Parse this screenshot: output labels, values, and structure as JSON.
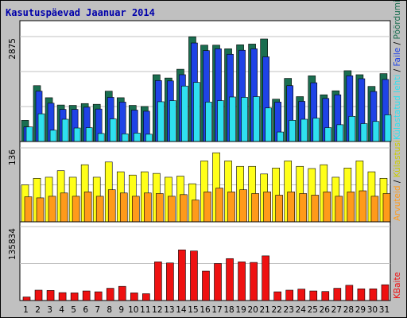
{
  "chart_data": [
    {
      "type": "bar",
      "title": "Kasutuspäevad Jaanuar 2014",
      "categories": [
        "1",
        "2",
        "3",
        "4",
        "5",
        "6",
        "7",
        "8",
        "9",
        "10",
        "11",
        "12",
        "13",
        "14",
        "15",
        "16",
        "17",
        "18",
        "19",
        "20",
        "21",
        "22",
        "23",
        "24",
        "25",
        "26",
        "27",
        "28",
        "29",
        "30",
        "31"
      ],
      "weekend_categories": [
        "4",
        "5",
        "11",
        "12",
        "18",
        "19",
        "25",
        "26"
      ],
      "ytick_label": "2875",
      "ylim": [
        0,
        2875
      ],
      "series": [
        {
          "name": "Pöördumisi",
          "color": "#1a6e50",
          "values": [
            580,
            1530,
            1200,
            1000,
            990,
            1040,
            1020,
            1380,
            1200,
            990,
            960,
            1830,
            1740,
            1980,
            2870,
            2640,
            2640,
            2540,
            2650,
            2670,
            2810,
            1160,
            1730,
            1230,
            1800,
            1280,
            1390,
            1940,
            1830,
            1510,
            1860
          ]
        },
        {
          "name": "Faile",
          "color": "#1f43e6",
          "values": [
            400,
            1380,
            1050,
            880,
            880,
            940,
            890,
            1210,
            1080,
            860,
            830,
            1670,
            1660,
            1830,
            2700,
            2490,
            2540,
            2390,
            2500,
            2540,
            2320,
            1080,
            1530,
            1100,
            1610,
            1180,
            1280,
            1800,
            1720,
            1370,
            1700
          ]
        },
        {
          "name": "Külastatud lehti",
          "color": "#2fe0ef",
          "values": [
            400,
            760,
            310,
            610,
            370,
            380,
            220,
            620,
            210,
            230,
            200,
            1090,
            1120,
            1520,
            1620,
            1080,
            1120,
            1220,
            1210,
            1230,
            920,
            260,
            580,
            610,
            640,
            380,
            460,
            690,
            490,
            550,
            730
          ]
        }
      ]
    },
    {
      "type": "bar",
      "categories": [
        "1",
        "2",
        "3",
        "4",
        "5",
        "6",
        "7",
        "8",
        "9",
        "10",
        "11",
        "12",
        "13",
        "14",
        "15",
        "16",
        "17",
        "18",
        "19",
        "20",
        "21",
        "22",
        "23",
        "24",
        "25",
        "26",
        "27",
        "28",
        "29",
        "30",
        "31"
      ],
      "ytick_label": "136",
      "ylim": [
        0,
        136
      ],
      "series": [
        {
          "name": "Külastusi",
          "color": "#ffff19",
          "values": [
            68,
            80,
            82,
            94,
            82,
            105,
            82,
            110,
            92,
            86,
            92,
            89,
            82,
            84,
            70,
            112,
            127,
            112,
            102,
            102,
            88,
            99,
            112,
            102,
            98,
            105,
            82,
            99,
            112,
            92,
            80
          ]
        },
        {
          "name": "Arvuteid",
          "color": "#ff9a1a",
          "values": [
            46,
            44,
            47,
            53,
            47,
            55,
            47,
            59,
            53,
            47,
            53,
            52,
            47,
            50,
            40,
            55,
            62,
            55,
            59,
            52,
            55,
            49,
            55,
            52,
            49,
            55,
            47,
            55,
            57,
            47,
            52
          ]
        }
      ]
    },
    {
      "type": "bar",
      "categories": [
        "1",
        "2",
        "3",
        "4",
        "5",
        "6",
        "7",
        "8",
        "9",
        "10",
        "11",
        "12",
        "13",
        "14",
        "15",
        "16",
        "17",
        "18",
        "19",
        "20",
        "21",
        "22",
        "23",
        "24",
        "25",
        "26",
        "27",
        "28",
        "29",
        "30",
        "31"
      ],
      "ytick_label": "135834",
      "ylim": [
        0,
        135834
      ],
      "series": [
        {
          "name": "KBaite",
          "color": "#ee1111",
          "values": [
            6500,
            19000,
            18500,
            14500,
            14000,
            17500,
            16000,
            22500,
            26000,
            14000,
            12500,
            71000,
            69000,
            93000,
            91000,
            54000,
            68000,
            77000,
            71000,
            70000,
            82000,
            16000,
            19000,
            21000,
            17500,
            16500,
            22500,
            28000,
            21500,
            21500,
            29000
          ]
        }
      ]
    }
  ],
  "colors": {
    "frame_bg": "#c0c0c0",
    "panel_bg": "#ffffff",
    "grid": "#c0c0c0",
    "tick_weekday": "#000000",
    "tick_weekend": "#006c31",
    "slash_separator": "#000000"
  }
}
